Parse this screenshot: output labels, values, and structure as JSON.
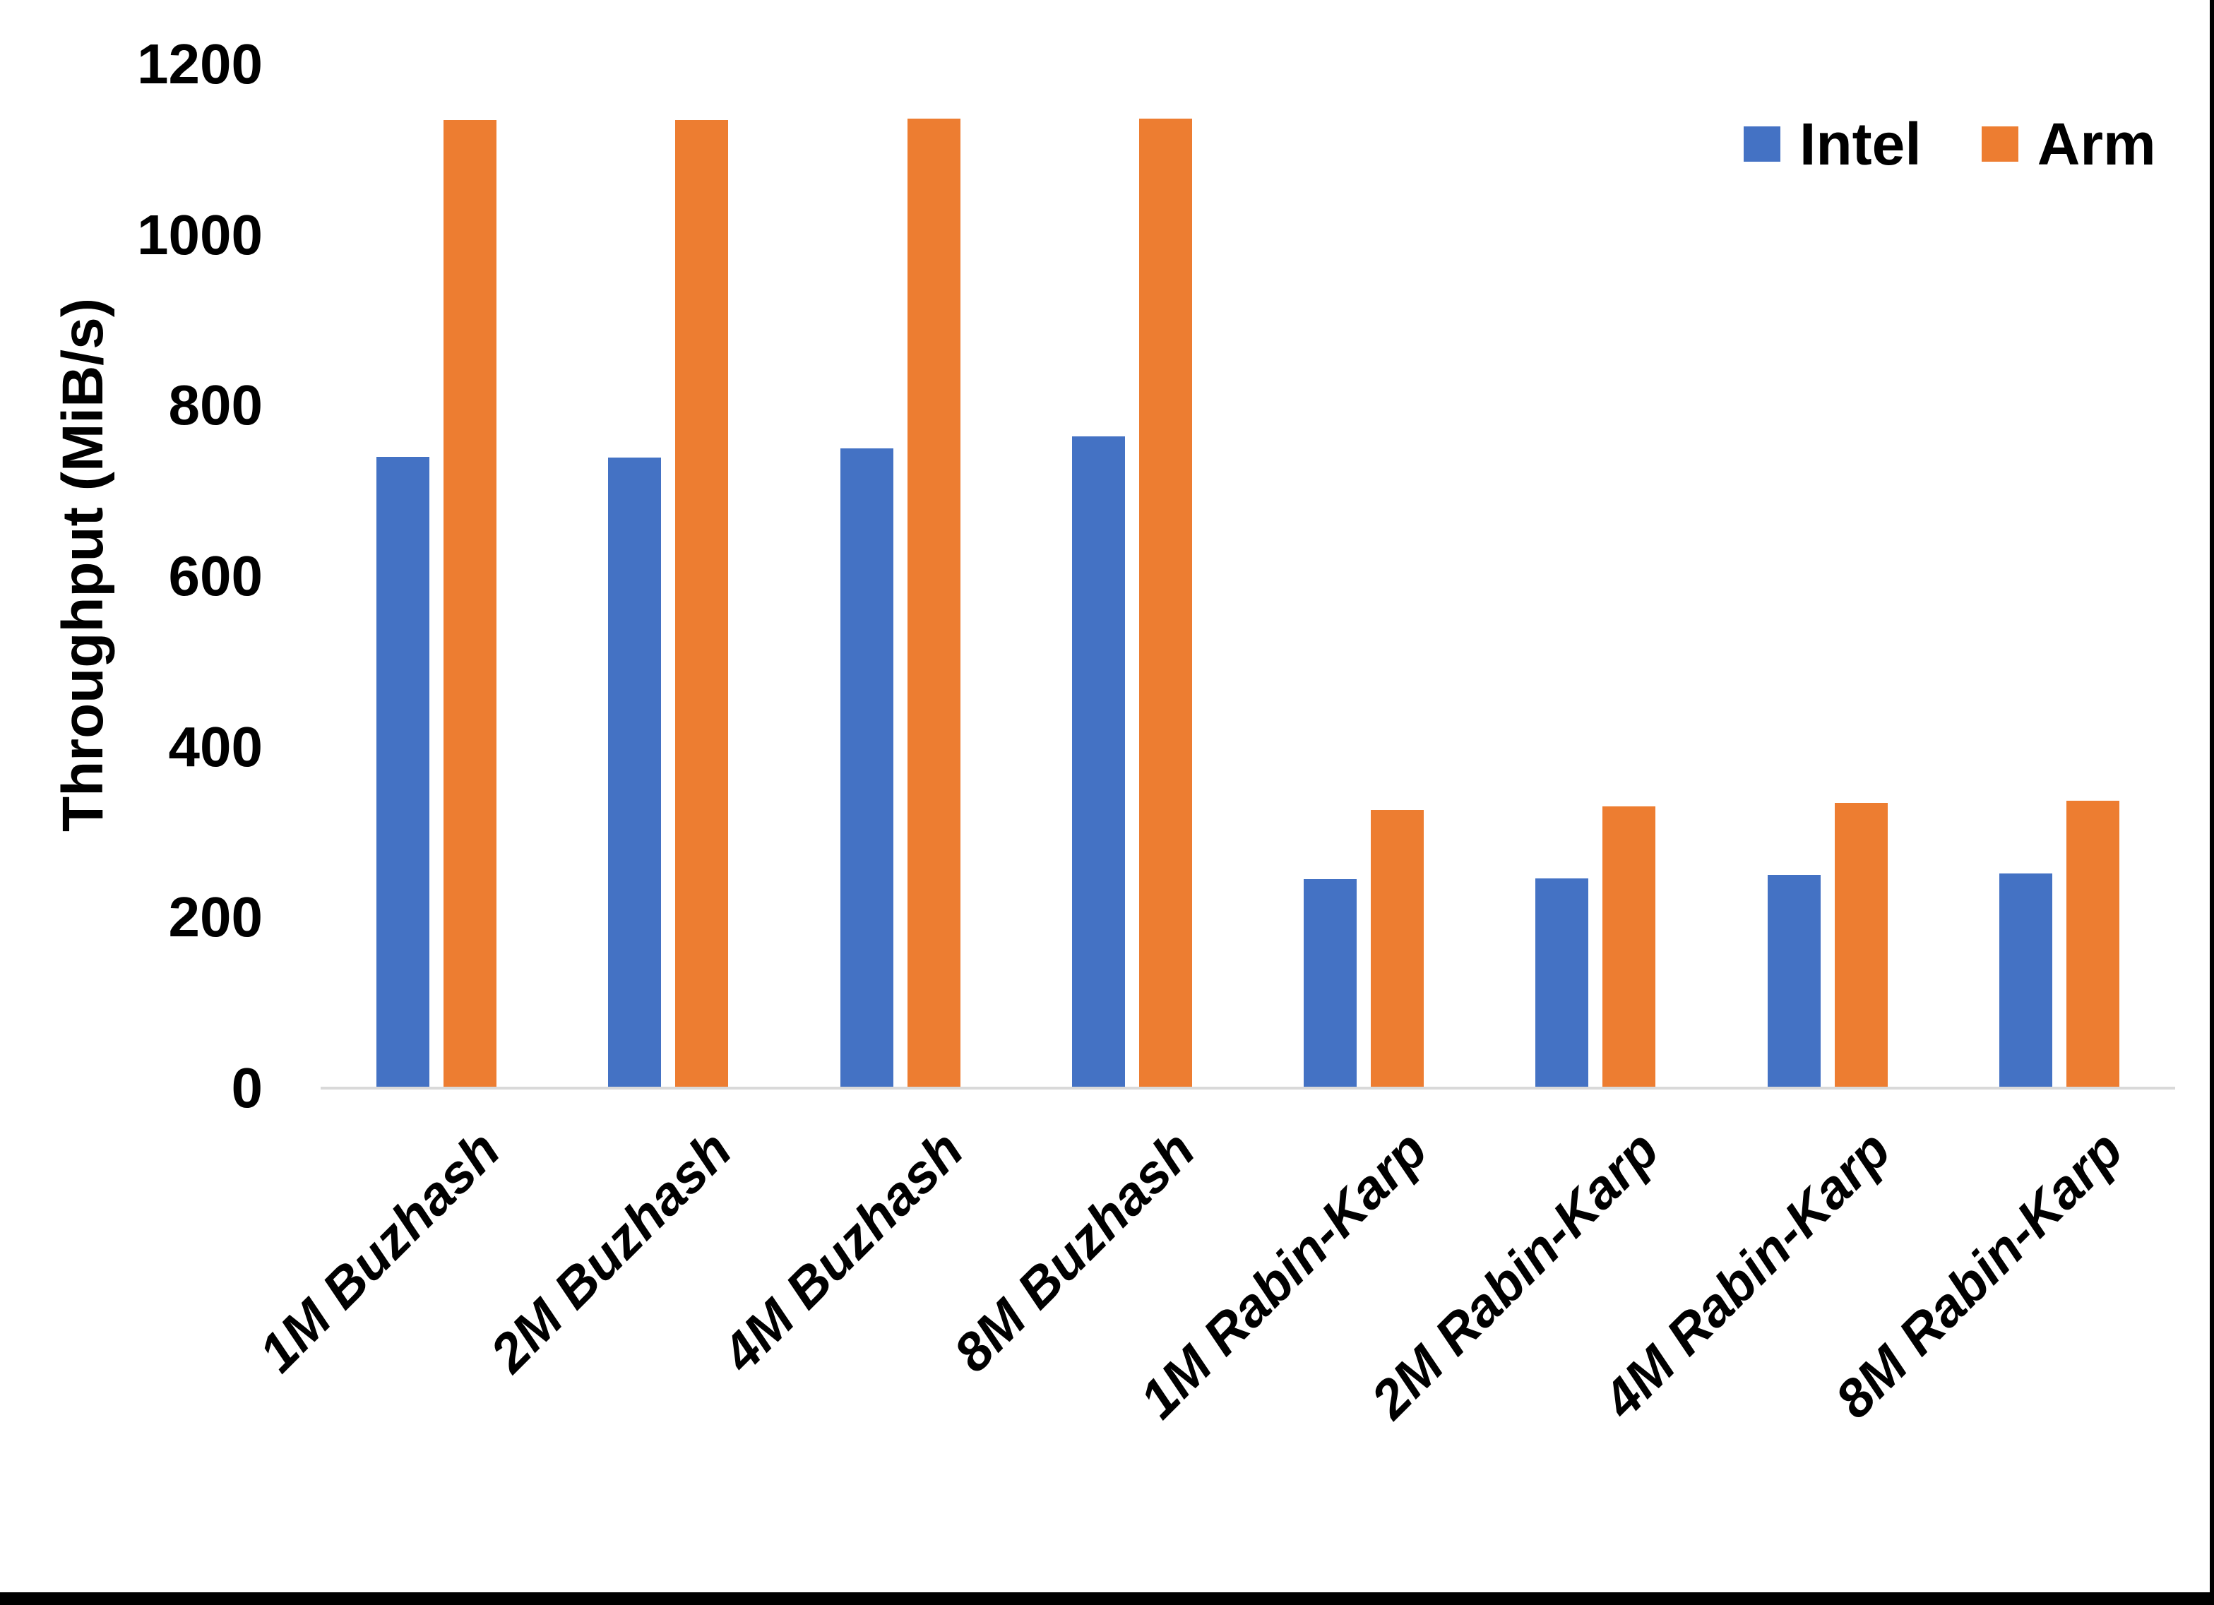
{
  "chart_data": {
    "type": "bar",
    "title": "",
    "xlabel": "",
    "ylabel": "Throughput (MiB/s)",
    "categories": [
      "1M Buzhash",
      "2M Buzhash",
      "4M Buzhash",
      "8M Buzhash",
      "1M Rabin-Karp",
      "2M Rabin-Karp",
      "4M Rabin-Karp",
      "8M Rabin-Karp"
    ],
    "series": [
      {
        "name": "Intel",
        "color": "#4472C4",
        "values": [
          740,
          739,
          750,
          764,
          245,
          246,
          250,
          252
        ]
      },
      {
        "name": "Arm",
        "color": "#ED7D31",
        "values": [
          1135,
          1135,
          1136,
          1136,
          326,
          330,
          334,
          337
        ]
      }
    ],
    "ylim": [
      0,
      1200
    ],
    "yticks": [
      0,
      200,
      400,
      600,
      800,
      1000,
      1200
    ],
    "grid": "off",
    "legend_position": "top-right",
    "axis_line_color": "#D9D9D9",
    "page_border_color": "#000000",
    "background": "#FFFFFF"
  }
}
